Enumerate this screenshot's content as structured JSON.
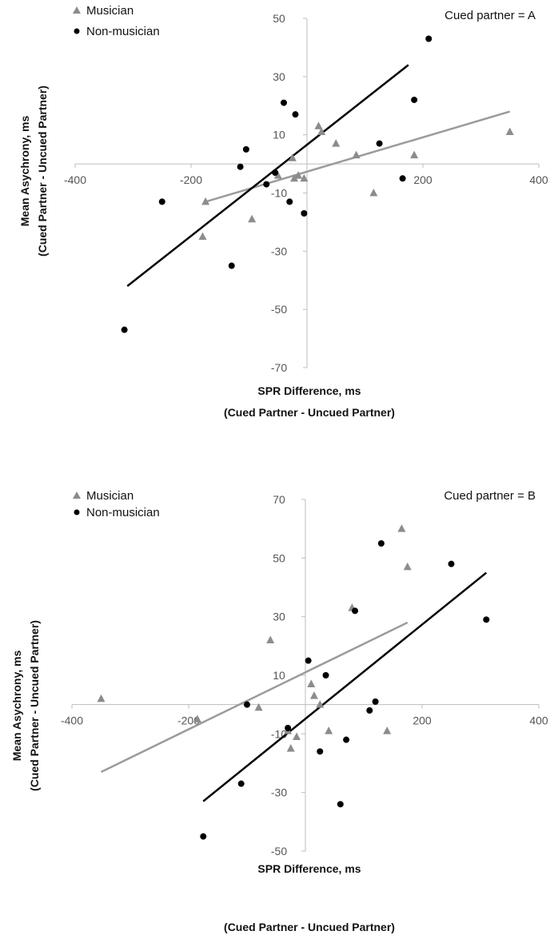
{
  "chart_data": [
    {
      "type": "scatter",
      "annotation": "Cued partner = A",
      "xlabel": "SPR Difference, ms",
      "xlabel_sub": "(Cued Partner - Uncued Partner)",
      "ylabel": "Mean Asychrony, ms",
      "ylabel_sub": "(Cued Partner - Uncued Partner)",
      "xlim": [
        -400,
        400
      ],
      "ylim": [
        -70,
        50
      ],
      "x_ticks": [
        -400,
        -200,
        200,
        400
      ],
      "y_ticks": [
        50,
        30,
        10,
        -10,
        -30,
        -50,
        -70
      ],
      "legend": [
        "Musician",
        "Non-musician"
      ],
      "series": [
        {
          "name": "Musician",
          "marker": "triangle",
          "color": "#8c8c8c",
          "points": [
            [
              -175,
              -13
            ],
            [
              -180,
              -25
            ],
            [
              -95,
              -19
            ],
            [
              -50,
              -4
            ],
            [
              -25,
              2
            ],
            [
              -22,
              -5
            ],
            [
              -15,
              -4
            ],
            [
              -5,
              -5
            ],
            [
              20,
              13
            ],
            [
              25,
              11
            ],
            [
              50,
              7
            ],
            [
              85,
              3
            ],
            [
              115,
              -10
            ],
            [
              185,
              3
            ],
            [
              350,
              11
            ]
          ],
          "trend": [
            [
              -175,
              -13
            ],
            [
              350,
              18
            ]
          ]
        },
        {
          "name": "Non-musician",
          "marker": "circle",
          "color": "#000000",
          "points": [
            [
              -315,
              -57
            ],
            [
              -250,
              -13
            ],
            [
              -130,
              -35
            ],
            [
              -115,
              -1
            ],
            [
              -105,
              5
            ],
            [
              -70,
              -7
            ],
            [
              -55,
              -3
            ],
            [
              -40,
              21
            ],
            [
              -30,
              -13
            ],
            [
              -20,
              17
            ],
            [
              -5,
              -17
            ],
            [
              165,
              -5
            ],
            [
              185,
              22
            ],
            [
              210,
              43
            ],
            [
              125,
              7
            ]
          ],
          "trend": [
            [
              -310,
              -42
            ],
            [
              175,
              34
            ]
          ]
        }
      ]
    },
    {
      "type": "scatter",
      "annotation": "Cued partner = B",
      "xlabel": "SPR Difference, ms",
      "xlabel_sub": "(Cued Partner - Uncued Partner)",
      "ylabel": "Mean  Asychrony, ms",
      "ylabel_sub": "(Cued Partner - Uncued Partner)",
      "xlim": [
        -400,
        400
      ],
      "ylim": [
        -50,
        70
      ],
      "x_ticks": [
        -400,
        -200,
        200,
        400
      ],
      "y_ticks": [
        70,
        50,
        30,
        10,
        -10,
        -30,
        -50
      ],
      "legend": [
        "Musician",
        "Non-musician"
      ],
      "series": [
        {
          "name": "Musician",
          "marker": "triangle",
          "color": "#8c8c8c",
          "points": [
            [
              -350,
              2
            ],
            [
              -185,
              -5
            ],
            [
              -80,
              -1
            ],
            [
              -60,
              22
            ],
            [
              -30,
              -9
            ],
            [
              -15,
              -11
            ],
            [
              -25,
              -15
            ],
            [
              10,
              7
            ],
            [
              15,
              3
            ],
            [
              25,
              0
            ],
            [
              40,
              -9
            ],
            [
              80,
              33
            ],
            [
              140,
              -9
            ],
            [
              165,
              60
            ],
            [
              175,
              47
            ]
          ],
          "trend": [
            [
              -350,
              -23
            ],
            [
              175,
              28
            ]
          ]
        },
        {
          "name": "Non-musician",
          "marker": "circle",
          "color": "#000000",
          "points": [
            [
              -175,
              -45
            ],
            [
              -110,
              -27
            ],
            [
              -100,
              0
            ],
            [
              -30,
              -8
            ],
            [
              5,
              15
            ],
            [
              35,
              10
            ],
            [
              25,
              -16
            ],
            [
              60,
              -34
            ],
            [
              70,
              -12
            ],
            [
              110,
              -2
            ],
            [
              120,
              1
            ],
            [
              130,
              55
            ],
            [
              85,
              32
            ],
            [
              250,
              48
            ],
            [
              310,
              29
            ]
          ],
          "trend": [
            [
              -175,
              -33
            ],
            [
              310,
              45
            ]
          ]
        }
      ]
    }
  ]
}
